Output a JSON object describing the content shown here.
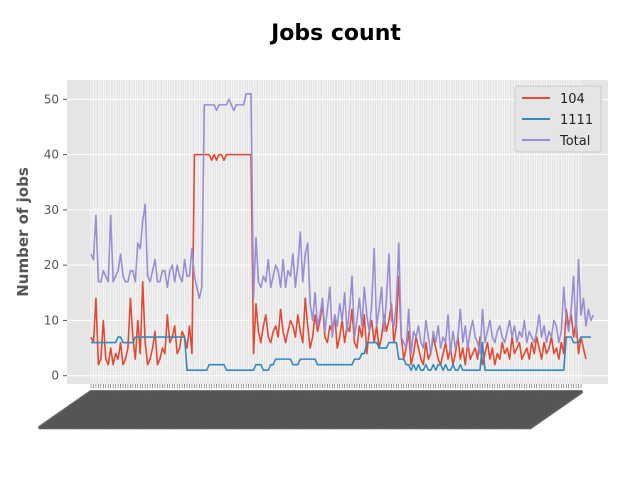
{
  "chart_data": {
    "type": "line",
    "title": "Jobs count",
    "xlabel": "",
    "ylabel": "Number of jobs",
    "ylim": [
      -1.5,
      53.5
    ],
    "yticks": [
      0,
      10,
      20,
      30,
      40,
      50
    ],
    "grid": true,
    "legend_position": "top-right",
    "colors": {
      "104": "#e24a33",
      "1111": "#348abd",
      "Total": "#988ed5"
    },
    "x_count": 200,
    "series": [
      {
        "name": "104",
        "values": [
          7,
          6,
          14,
          2,
          3,
          10,
          3,
          2,
          5,
          2,
          4,
          3,
          6,
          2,
          3,
          5,
          14,
          7,
          3,
          10,
          4,
          17,
          6,
          2,
          3,
          5,
          8,
          2,
          3,
          5,
          4,
          11,
          6,
          7,
          9,
          4,
          5,
          8,
          7,
          5,
          9,
          4,
          40,
          40,
          40,
          40,
          40,
          40,
          40,
          39,
          40,
          39,
          40,
          40,
          39,
          40,
          40,
          40,
          40,
          40,
          40,
          40,
          40,
          40,
          40,
          40,
          4,
          13,
          8,
          6,
          9,
          11,
          7,
          6,
          8,
          9,
          7,
          12,
          8,
          6,
          8,
          10,
          9,
          7,
          11,
          8,
          6,
          14,
          9,
          5,
          7,
          11,
          8,
          10,
          13,
          7,
          6,
          9,
          8,
          11,
          5,
          7,
          10,
          6,
          9,
          8,
          12,
          6,
          5,
          9,
          7,
          11,
          4,
          8,
          10,
          6,
          9,
          5,
          7,
          11,
          8,
          10,
          13,
          6,
          9,
          18,
          7,
          3,
          5,
          8,
          2,
          4,
          7,
          5,
          3,
          2,
          6,
          3,
          4,
          7,
          5,
          3,
          2,
          4,
          6,
          3,
          5,
          2,
          4,
          7,
          3,
          5,
          2,
          6,
          3,
          4,
          5,
          3,
          7,
          2,
          4,
          6,
          3,
          5,
          2,
          4,
          3,
          6,
          4,
          5,
          3,
          7,
          4,
          5,
          6,
          3,
          4,
          5,
          3,
          6,
          4,
          7,
          5,
          3,
          6,
          4,
          5,
          7,
          4,
          5,
          3,
          6,
          4,
          12,
          9,
          11,
          7,
          10,
          4,
          7,
          5,
          3
        ]
      },
      {
        "name": "1111",
        "values": [
          6,
          6,
          6,
          6,
          6,
          6,
          6,
          6,
          6,
          6,
          6,
          7,
          7,
          6,
          6,
          6,
          6,
          6,
          7,
          7,
          7,
          7,
          7,
          7,
          7,
          7,
          7,
          7,
          7,
          7,
          7,
          7,
          7,
          7,
          7,
          7,
          7,
          7,
          7,
          1,
          1,
          1,
          1,
          1,
          1,
          1,
          1,
          1,
          2,
          2,
          2,
          2,
          2,
          2,
          2,
          1,
          1,
          1,
          1,
          1,
          1,
          1,
          1,
          1,
          1,
          1,
          1,
          2,
          2,
          2,
          1,
          1,
          1,
          2,
          2,
          3,
          3,
          3,
          3,
          3,
          3,
          3,
          2,
          2,
          2,
          3,
          3,
          3,
          3,
          3,
          3,
          3,
          2,
          2,
          2,
          2,
          2,
          2,
          2,
          2,
          2,
          2,
          2,
          2,
          2,
          2,
          2,
          3,
          3,
          3,
          4,
          4,
          6,
          6,
          6,
          6,
          6,
          5,
          5,
          5,
          5,
          6,
          6,
          6,
          6,
          3,
          3,
          3,
          2,
          2,
          1,
          2,
          1,
          2,
          1,
          1,
          2,
          1,
          1,
          2,
          1,
          2,
          2,
          1,
          2,
          1,
          1,
          2,
          1,
          1,
          2,
          1,
          1,
          1,
          1,
          1,
          1,
          1,
          1,
          6,
          1,
          1,
          1,
          1,
          1,
          1,
          1,
          1,
          1,
          1,
          1,
          1,
          1,
          1,
          1,
          1,
          1,
          1,
          1,
          1,
          1,
          1,
          1,
          1,
          1,
          1,
          1,
          1,
          1,
          1,
          1,
          1,
          1,
          7,
          7,
          7,
          6,
          6,
          6,
          7,
          7,
          7,
          7,
          7
        ]
      },
      {
        "name": "Total",
        "values": [
          22,
          21,
          29,
          17,
          17,
          19,
          18,
          17,
          29,
          17,
          18,
          19,
          22,
          18,
          17,
          17,
          19,
          19,
          17,
          24,
          23,
          28,
          31,
          18,
          17,
          19,
          21,
          17,
          17,
          19,
          19,
          16,
          19,
          20,
          17,
          20,
          18,
          17,
          21,
          18,
          18,
          23,
          18,
          16,
          14,
          16,
          49,
          49,
          49,
          49,
          49,
          48,
          49,
          49,
          49,
          49,
          50,
          49,
          48,
          49,
          49,
          49,
          49,
          51,
          51,
          51,
          14,
          25,
          17,
          16,
          18,
          17,
          21,
          16,
          18,
          20,
          19,
          16,
          21,
          16,
          19,
          18,
          22,
          16,
          20,
          26,
          17,
          22,
          24,
          13,
          10,
          15,
          9,
          11,
          14,
          8,
          12,
          16,
          7,
          11,
          9,
          13,
          10,
          15,
          8,
          12,
          18,
          7,
          10,
          14,
          9,
          16,
          11,
          8,
          13,
          23,
          9,
          12,
          16,
          8,
          14,
          22,
          10,
          9,
          13,
          24,
          7,
          6,
          5,
          12,
          4,
          8,
          7,
          9,
          6,
          5,
          10,
          7,
          4,
          8,
          6,
          9,
          5,
          7,
          6,
          11,
          4,
          8,
          5,
          7,
          12,
          6,
          9,
          5,
          8,
          10,
          7,
          6,
          4,
          12,
          6,
          8,
          10,
          7,
          6,
          8,
          9,
          7,
          6,
          8,
          10,
          7,
          9,
          6,
          8,
          7,
          10,
          6,
          8,
          7,
          6,
          8,
          11,
          7,
          9,
          6,
          8,
          7,
          10,
          9,
          6,
          8,
          16,
          10,
          8,
          12,
          18,
          7,
          21,
          11,
          14,
          9,
          12,
          10,
          11
        ]
      }
    ]
  }
}
